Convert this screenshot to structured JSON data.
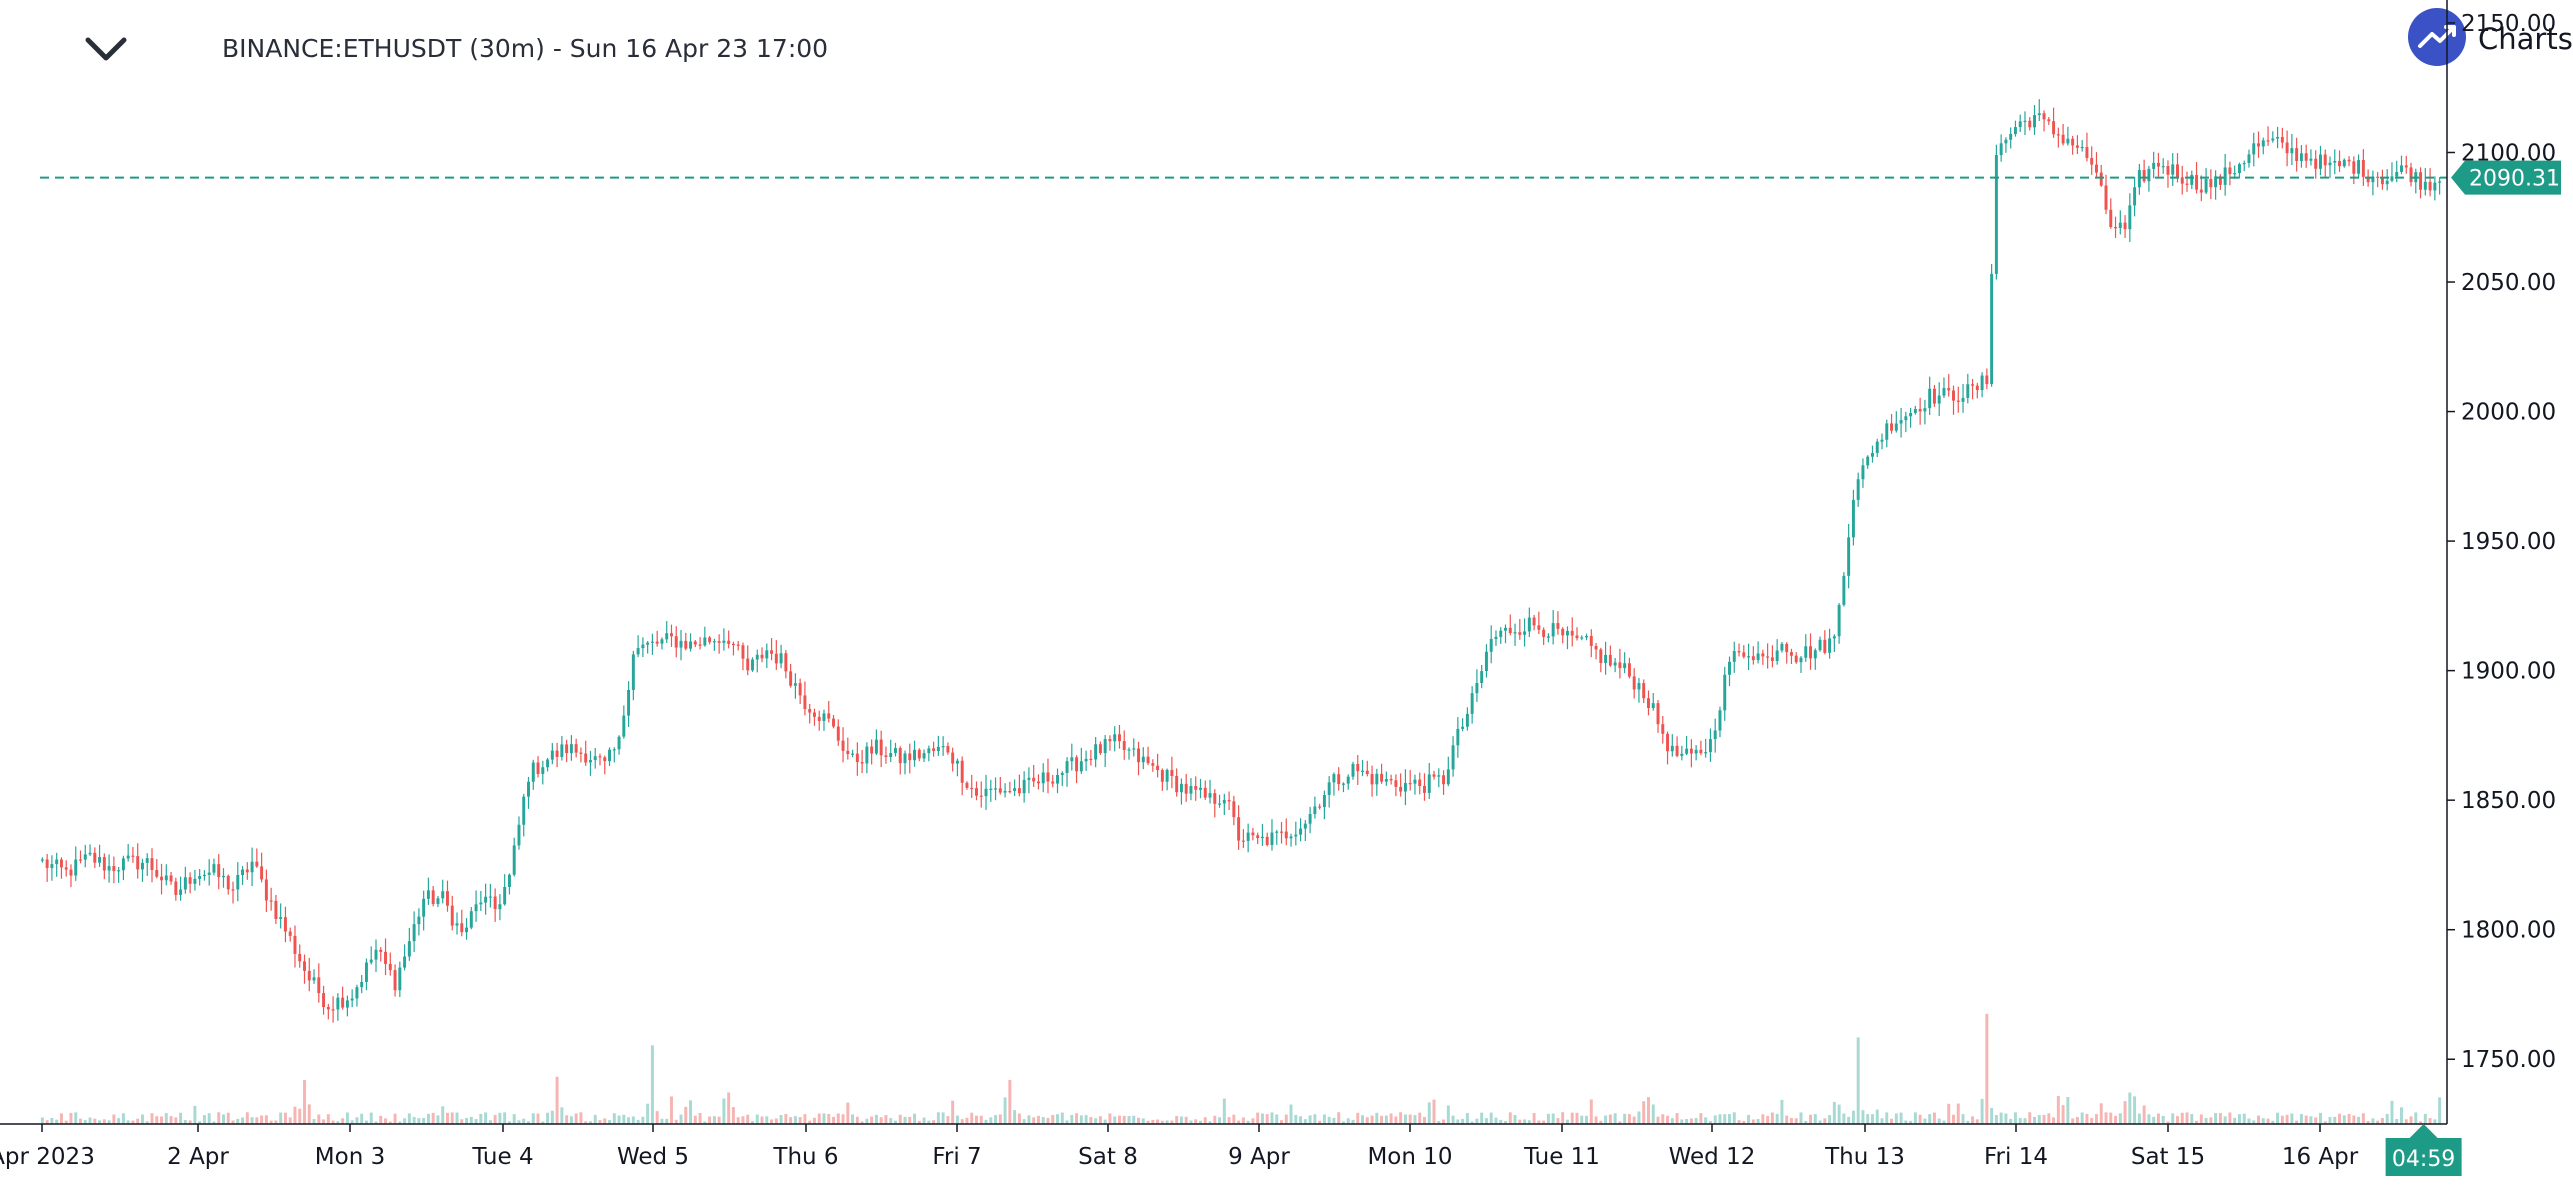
{
  "header": {
    "title": "BINANCE:ETHUSDT (30m) - Sun 16 Apr 23 17:00",
    "logo_text": "Charts",
    "collapse_icon": "chevron-down-icon",
    "logo_icon": "trend-up-icon"
  },
  "colors": {
    "up": "#26a69a",
    "down": "#ef5350",
    "up_volume": "#a8d9d3",
    "down_volume": "#f6b5b3",
    "badge": "#1e9b86",
    "price_line": "#1e9b86",
    "axis": "#131722"
  },
  "chart_data": {
    "type": "candlestick",
    "symbol": "BINANCE:ETHUSDT",
    "interval": "30m",
    "ylim": [
      1725,
      2155
    ],
    "y_ticks": [
      "1750.00",
      "1800.00",
      "1850.00",
      "1900.00",
      "1950.00",
      "2000.00",
      "2050.00",
      "2100.00",
      "2150.00"
    ],
    "x_labels": [
      "Apr 2023",
      "2 Apr",
      "Mon 3",
      "Tue 4",
      "Wed 5",
      "Thu 6",
      "Fri 7",
      "Sat 8",
      "9 Apr",
      "Mon 10",
      "Tue 11",
      "Wed 12",
      "Thu 13",
      "Fri 14",
      "Sat 15",
      "16 Apr"
    ],
    "last_price": "2090.31",
    "countdown": "04:59",
    "close_path": [
      [
        0,
        1826
      ],
      [
        5,
        1822
      ],
      [
        10,
        1828
      ],
      [
        14,
        1824
      ],
      [
        18,
        1826
      ],
      [
        22,
        1826
      ],
      [
        28,
        1814
      ],
      [
        32,
        1822
      ],
      [
        36,
        1822
      ],
      [
        40,
        1816
      ],
      [
        44,
        1826
      ],
      [
        47,
        1814
      ],
      [
        51,
        1800
      ],
      [
        56,
        1781
      ],
      [
        60,
        1771
      ],
      [
        65,
        1775
      ],
      [
        70,
        1792
      ],
      [
        74,
        1780
      ],
      [
        76,
        1790
      ],
      [
        80,
        1812
      ],
      [
        84,
        1812
      ],
      [
        88,
        1798
      ],
      [
        92,
        1812
      ],
      [
        95,
        1808
      ],
      [
        98,
        1820
      ],
      [
        102,
        1860
      ],
      [
        106,
        1866
      ],
      [
        110,
        1870
      ],
      [
        114,
        1868
      ],
      [
        118,
        1863
      ],
      [
        121,
        1872
      ],
      [
        124,
        1908
      ],
      [
        128,
        1910
      ],
      [
        132,
        1912
      ],
      [
        136,
        1910
      ],
      [
        140,
        1912
      ],
      [
        144,
        1913
      ],
      [
        148,
        1900
      ],
      [
        152,
        1908
      ],
      [
        155,
        1904
      ],
      [
        160,
        1888
      ],
      [
        165,
        1880
      ],
      [
        170,
        1865
      ],
      [
        175,
        1870
      ],
      [
        180,
        1866
      ],
      [
        185,
        1868
      ],
      [
        190,
        1870
      ],
      [
        193,
        1860
      ],
      [
        196,
        1852
      ],
      [
        200,
        1854
      ],
      [
        205,
        1854
      ],
      [
        210,
        1858
      ],
      [
        215,
        1862
      ],
      [
        220,
        1868
      ],
      [
        225,
        1872
      ],
      [
        230,
        1866
      ],
      [
        235,
        1860
      ],
      [
        240,
        1854
      ],
      [
        245,
        1850
      ],
      [
        248,
        1852
      ],
      [
        251,
        1836
      ],
      [
        255,
        1834
      ],
      [
        260,
        1836
      ],
      [
        265,
        1842
      ],
      [
        270,
        1856
      ],
      [
        275,
        1862
      ],
      [
        280,
        1858
      ],
      [
        285,
        1856
      ],
      [
        290,
        1856
      ],
      [
        294,
        1858
      ],
      [
        296,
        1870
      ],
      [
        300,
        1888
      ],
      [
        304,
        1912
      ],
      [
        308,
        1916
      ],
      [
        312,
        1918
      ],
      [
        316,
        1916
      ],
      [
        320,
        1912
      ],
      [
        324,
        1910
      ],
      [
        328,
        1904
      ],
      [
        332,
        1900
      ],
      [
        336,
        1892
      ],
      [
        339,
        1880
      ],
      [
        342,
        1868
      ],
      [
        346,
        1866
      ],
      [
        350,
        1872
      ],
      [
        354,
        1904
      ],
      [
        358,
        1908
      ],
      [
        362,
        1904
      ],
      [
        365,
        1912
      ],
      [
        368,
        1906
      ],
      [
        372,
        1908
      ],
      [
        376,
        1912
      ],
      [
        380,
        1968
      ],
      [
        384,
        1986
      ],
      [
        388,
        1996
      ],
      [
        392,
        2000
      ],
      [
        396,
        2006
      ],
      [
        400,
        2006
      ],
      [
        405,
        2008
      ],
      [
        408,
        2012
      ],
      [
        410,
        2100
      ],
      [
        414,
        2110
      ],
      [
        418,
        2114
      ],
      [
        422,
        2108
      ],
      [
        426,
        2104
      ],
      [
        430,
        2096
      ],
      [
        434,
        2072
      ],
      [
        437,
        2070
      ],
      [
        440,
        2090
      ],
      [
        444,
        2096
      ],
      [
        448,
        2092
      ],
      [
        452,
        2088
      ],
      [
        456,
        2088
      ],
      [
        460,
        2094
      ],
      [
        464,
        2102
      ],
      [
        468,
        2104
      ],
      [
        472,
        2100
      ],
      [
        476,
        2098
      ],
      [
        480,
        2094
      ],
      [
        484,
        2096
      ],
      [
        488,
        2092
      ],
      [
        492,
        2090
      ],
      [
        496,
        2094
      ],
      [
        498,
        2090
      ],
      [
        500,
        2088
      ],
      [
        503,
        2090
      ]
    ],
    "volume_spikes": [
      [
        55,
        0.28
      ],
      [
        108,
        0.3
      ],
      [
        128,
        0.5
      ],
      [
        144,
        0.2
      ],
      [
        203,
        0.28
      ],
      [
        337,
        0.17
      ],
      [
        381,
        0.55
      ],
      [
        408,
        0.7
      ],
      [
        424,
        0.12
      ],
      [
        438,
        0.2
      ]
    ]
  }
}
